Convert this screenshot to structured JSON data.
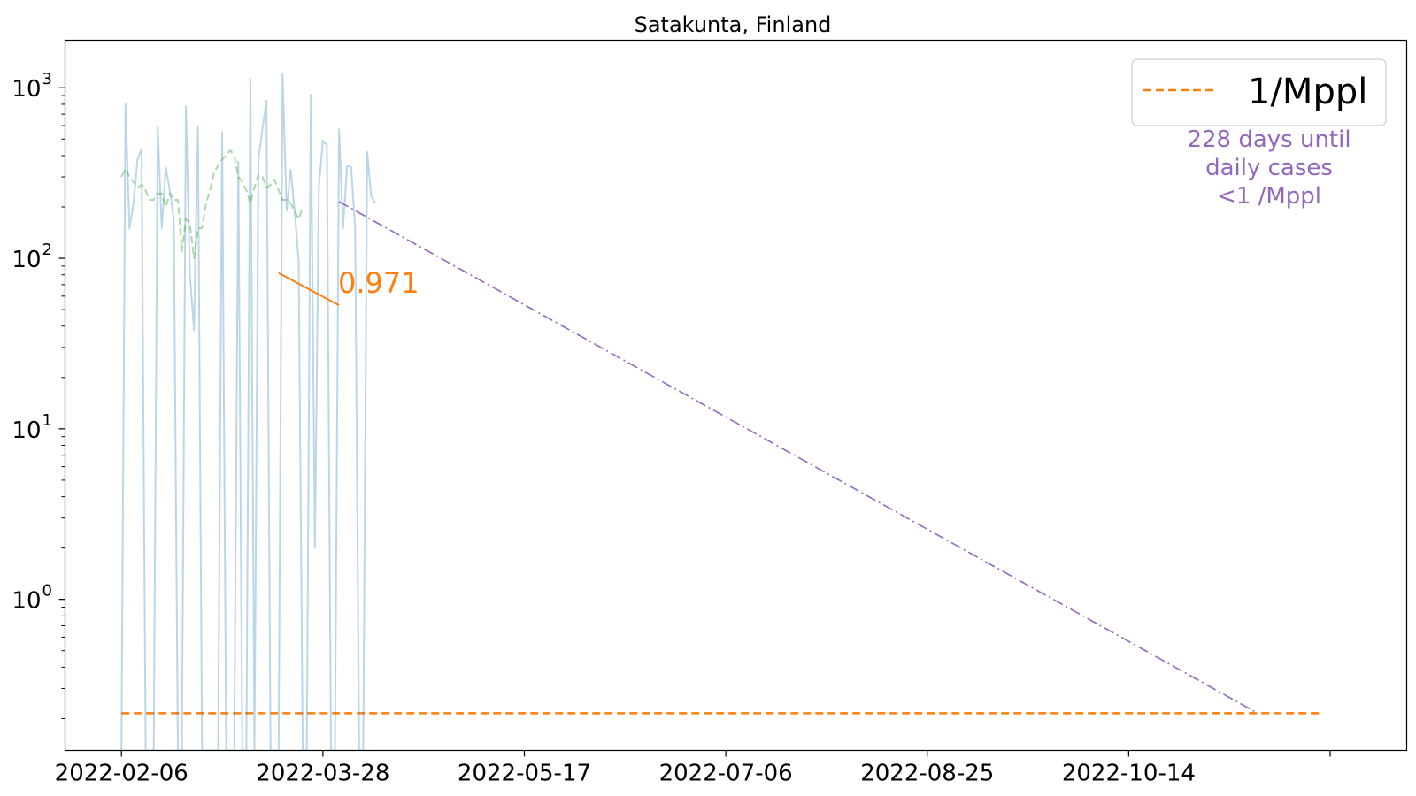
{
  "chart_data": {
    "type": "line",
    "title": "Satakunta, Finland",
    "xlabel": "",
    "ylabel": "",
    "yscale": "log",
    "ylim": [
      0.13,
      1900
    ],
    "x_axis": {
      "type": "date",
      "range": [
        "2022-01-23",
        "2022-12-22"
      ],
      "tick_labels": [
        "2022-02-06",
        "2022-03-28",
        "2022-05-17",
        "2022-07-06",
        "2022-08-25",
        "2022-10-14",
        ""
      ],
      "tick_dates": [
        "2022-02-06",
        "2022-03-28",
        "2022-05-17",
        "2022-07-06",
        "2022-08-25",
        "2022-10-14",
        "2022-12-03"
      ]
    },
    "y_axis": {
      "tick_values": [
        1,
        10,
        100,
        1000
      ],
      "tick_labels": [
        {
          "base": "10",
          "exp": "0"
        },
        {
          "base": "10",
          "exp": "1"
        },
        {
          "base": "10",
          "exp": "2"
        },
        {
          "base": "10",
          "exp": "3"
        }
      ]
    },
    "grid": false,
    "legend": {
      "placement": "top-right",
      "entries": [
        {
          "label": "1/Mppl",
          "color": "#ff7f0e",
          "style": "dashed"
        }
      ]
    },
    "series": [
      {
        "role": "daily cases",
        "color": "#1f77b4",
        "opacity": 0.3,
        "style": "solid",
        "start_date": "2022-02-06",
        "values": [
          0.13,
          800,
          150,
          210,
          380,
          440,
          0.13,
          0.13,
          0.13,
          590,
          150,
          340,
          250,
          170,
          0.13,
          0.13,
          780,
          80,
          38,
          590,
          0.13,
          0.13,
          0.13,
          0.13,
          0.13,
          550,
          0.13,
          0.13,
          0.13,
          370,
          0.13,
          0.13,
          1130,
          0.13,
          380,
          580,
          840,
          0.13,
          0.13,
          0.13,
          1200,
          190,
          330,
          190,
          95,
          0.13,
          0.13,
          910,
          2,
          260,
          490,
          460,
          0.13,
          0.13,
          570,
          150,
          350,
          345,
          150,
          0.13,
          0.13,
          420,
          230,
          210
        ]
      },
      {
        "role": "7-day average",
        "color": "#2ca02c",
        "opacity": 0.4,
        "style": "dashed",
        "start_date": "2022-02-06",
        "values": [
          300,
          335,
          300,
          280,
          260,
          270,
          250,
          220,
          220,
          240,
          240,
          200,
          240,
          220,
          220,
          110,
          170,
          160,
          100,
          150,
          150,
          210,
          250,
          320,
          350,
          380,
          400,
          430,
          400,
          300,
          280,
          250,
          210,
          260,
          310,
          300,
          260,
          270,
          290,
          250,
          220,
          220,
          210,
          190,
          170,
          200
        ]
      }
    ],
    "reference_line": {
      "label": "1/Mppl",
      "value": 0.215,
      "color": "#ff7f0e",
      "x_range": [
        "2022-02-06",
        "2022-12-01"
      ]
    },
    "projection": {
      "color": "#9467bd",
      "style": "dashdot",
      "from": {
        "x": "2022-04-01",
        "y": 215
      },
      "to": {
        "x": "2022-11-15",
        "y": 0.215
      }
    },
    "slope_marker": {
      "color": "#ff7f0e",
      "from": {
        "x": "2022-03-17",
        "y": 82
      },
      "to": {
        "x": "2022-04-01",
        "y": 53
      },
      "label": "0.971"
    },
    "annotation": {
      "text": [
        "228 days until",
        "daily cases",
        "<1 /Mppl"
      ],
      "color": "#9467bd"
    }
  }
}
